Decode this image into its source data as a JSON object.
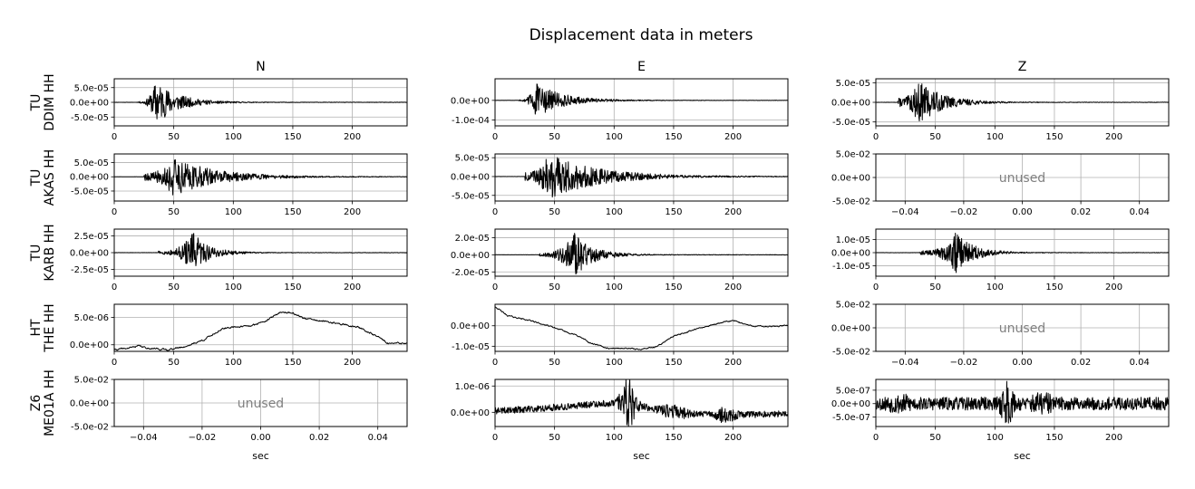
{
  "chart_data": {
    "type": "line",
    "title": "Displacement data in meters",
    "columns": [
      "N",
      "E",
      "Z"
    ],
    "xlabel": "sec",
    "xlim": [
      0,
      246
    ],
    "xticks": [
      "0",
      "50",
      "100",
      "150",
      "200"
    ],
    "xtick_values": [
      0,
      50,
      100,
      150,
      200
    ],
    "unused_xticks": [
      "−0.04",
      "−0.02",
      "0.00",
      "0.02",
      "0.04"
    ],
    "unused_xtick_values": [
      -0.04,
      -0.02,
      0.0,
      0.02,
      0.04
    ],
    "unused_xlim": [
      -0.05,
      0.05
    ],
    "unused_yticks": [
      "5.0e-02",
      "0.0e+00",
      "-5.0e-02"
    ],
    "unused_ytick_values": [
      0.05,
      0.0,
      -0.05
    ],
    "unused_ylim": [
      -0.05,
      0.05
    ],
    "unused_text": "unused",
    "rows": [
      {
        "network": "TU",
        "station": "DDIM HH",
        "panels": [
          {
            "component": "N",
            "used": true,
            "ylim": [
              -8e-05,
              8e-05
            ],
            "yticks": [
              "5.0e-05",
              "0.0e+00",
              "-5.0e-05"
            ],
            "ytick_values": [
              5e-05,
              0,
              -5e-05
            ],
            "trace": {
              "kind": "quake",
              "onset": 20,
              "peak": 35,
              "amp": 7.5e-05,
              "decay": 18,
              "pre": 0.04,
              "seed": 11
            }
          },
          {
            "component": "E",
            "used": true,
            "ylim": [
              -0.00013,
              0.00011
            ],
            "yticks": [
              "0.0e+00",
              "-1.0e-04"
            ],
            "ytick_values": [
              0,
              -0.0001
            ],
            "trace": {
              "kind": "quake",
              "onset": 20,
              "peak": 34,
              "amp": 9e-05,
              "decay": 22,
              "pre": 0.04,
              "seed": 12
            }
          },
          {
            "component": "Z",
            "used": true,
            "ylim": [
              -6e-05,
              6e-05
            ],
            "yticks": [
              "5.0e-05",
              "0.0e+00",
              "-5.0e-05"
            ],
            "ytick_values": [
              5e-05,
              0,
              -5e-05
            ],
            "trace": {
              "kind": "quake",
              "onset": 18,
              "peak": 36,
              "amp": 5.5e-05,
              "decay": 20,
              "pre": 0.2,
              "seed": 13
            }
          }
        ]
      },
      {
        "network": "TU",
        "station": "AKAS HH",
        "panels": [
          {
            "component": "N",
            "used": true,
            "ylim": [
              -8.5e-05,
              8e-05
            ],
            "yticks": [
              "5.0e-05",
              "0.0e+00",
              "-5.0e-05"
            ],
            "ytick_values": [
              5e-05,
              0,
              -5e-05
            ],
            "trace": {
              "kind": "quake",
              "onset": 25,
              "peak": 48,
              "amp": 7e-05,
              "decay": 35,
              "pre": 0.2,
              "seed": 21
            }
          },
          {
            "component": "E",
            "used": true,
            "ylim": [
              -6.5e-05,
              6e-05
            ],
            "yticks": [
              "5.0e-05",
              "0.0e+00",
              "-5.0e-05"
            ],
            "ytick_values": [
              5e-05,
              0,
              -5e-05
            ],
            "trace": {
              "kind": "quake",
              "onset": 25,
              "peak": 45,
              "amp": 6e-05,
              "decay": 40,
              "pre": 0.2,
              "seed": 22
            }
          },
          {
            "component": "Z",
            "used": false
          }
        ]
      },
      {
        "network": "TU",
        "station": "KARB HH",
        "panels": [
          {
            "component": "N",
            "used": true,
            "ylim": [
              -3.5e-05,
              3.5e-05
            ],
            "yticks": [
              "2.5e-05",
              "0.0e+00",
              "-2.5e-05"
            ],
            "ytick_values": [
              2.5e-05,
              0,
              -2.5e-05
            ],
            "trace": {
              "kind": "quake",
              "onset": 37,
              "peak": 66,
              "amp": 3e-05,
              "decay": 14,
              "pre": 0.08,
              "seed": 31
            }
          },
          {
            "component": "E",
            "used": true,
            "ylim": [
              -2.5e-05,
              3e-05
            ],
            "yticks": [
              "2.0e-05",
              "0.0e+00",
              "-2.0e-05"
            ],
            "ytick_values": [
              2e-05,
              0,
              -2e-05
            ],
            "trace": {
              "kind": "quake",
              "onset": 37,
              "peak": 66,
              "amp": 2.7e-05,
              "decay": 15,
              "pre": 0.08,
              "seed": 32
            }
          },
          {
            "component": "Z",
            "used": true,
            "ylim": [
              -1.8e-05,
              1.8e-05
            ],
            "yticks": [
              "1.0e-05",
              "0.0e+00",
              "-1.0e-05"
            ],
            "ytick_values": [
              1e-05,
              0,
              -1e-05
            ],
            "trace": {
              "kind": "quake",
              "onset": 37,
              "peak": 67,
              "amp": 1.6e-05,
              "decay": 15,
              "pre": 0.1,
              "seed": 33
            }
          }
        ]
      },
      {
        "network": "HT",
        "station": "THE HH",
        "panels": [
          {
            "component": "N",
            "used": true,
            "ylim": [
              -1.2e-06,
              7.4e-06
            ],
            "yticks": [
              "5.0e-06",
              "0.0e+00"
            ],
            "ytick_values": [
              5e-06,
              0
            ],
            "trace": {
              "kind": "drift",
              "noise": 1.2e-07,
              "seed": 41,
              "path": [
                [
                  0,
                  -9e-07
                ],
                [
                  10,
                  -7e-07
                ],
                [
                  20,
                  -2e-07
                ],
                [
                  28,
                  -6e-07
                ],
                [
                  45,
                  -9e-07
                ],
                [
                  60,
                  -3e-07
                ],
                [
                  75,
                  9e-07
                ],
                [
                  90,
                  2.8e-06
                ],
                [
                  100,
                  3.3e-06
                ],
                [
                  115,
                  3.4e-06
                ],
                [
                  130,
                  4.7e-06
                ],
                [
                  140,
                  6e-06
                ],
                [
                  150,
                  5.8e-06
                ],
                [
                  160,
                  4.8e-06
                ],
                [
                  175,
                  4.3e-06
                ],
                [
                  190,
                  3.8e-06
                ],
                [
                  205,
                  3.2e-06
                ],
                [
                  220,
                  1.6e-06
                ],
                [
                  230,
                  3e-07
                ],
                [
                  246,
                  2e-07
                ]
              ]
            }
          },
          {
            "component": "E",
            "used": true,
            "ylim": [
              -1.25e-05,
              1.05e-05
            ],
            "yticks": [
              "0.0e+00",
              "-1.0e-05"
            ],
            "ytick_values": [
              0,
              -1e-05
            ],
            "trace": {
              "kind": "drift",
              "noise": 2.5e-07,
              "seed": 42,
              "path": [
                [
                  0,
                  9.5e-06
                ],
                [
                  10,
                  5e-06
                ],
                [
                  30,
                  2.5e-06
                ],
                [
                  50,
                  -1e-06
                ],
                [
                  70,
                  -5e-06
                ],
                [
                  80,
                  -8.5e-06
                ],
                [
                  95,
                  -1.1e-05
                ],
                [
                  110,
                  -1.1e-05
                ],
                [
                  120,
                  -1.15e-05
                ],
                [
                  135,
                  -1.05e-05
                ],
                [
                  150,
                  -5e-06
                ],
                [
                  170,
                  -1.5e-06
                ],
                [
                  190,
                  1.5e-06
                ],
                [
                  200,
                  2.5e-06
                ],
                [
                  215,
                  0.0
                ],
                [
                  230,
                  -5e-07
                ],
                [
                  246,
                  2e-07
                ]
              ]
            }
          },
          {
            "component": "Z",
            "used": false
          }
        ]
      },
      {
        "network": "Z6",
        "station": "ME01A HH",
        "panels": [
          {
            "component": "N",
            "used": false
          },
          {
            "component": "E",
            "used": true,
            "ylim": [
              -5.4e-07,
              1.25e-06
            ],
            "yticks": [
              "1.0e-06",
              "0.0e+00"
            ],
            "ytick_values": [
              1e-06,
              0
            ],
            "trace": {
              "kind": "noisy",
              "amp": 1.4e-07,
              "seed": 52,
              "path": [
                [
                  0,
                  5e-08
                ],
                [
                  40,
                  1.5e-07
                ],
                [
                  80,
                  3e-07
                ],
                [
                  100,
                  3.5e-07
                ],
                [
                  110,
                  4.5e-07
                ],
                [
                  130,
                  1.5e-07
                ],
                [
                  160,
                  -5e-08
                ],
                [
                  200,
                  -1e-07
                ],
                [
                  246,
                  -5e-08
                ]
              ],
              "bursts": [
                [
                  112,
                  1.1e-06,
                  6
                ],
                [
                  150,
                  3e-07,
                  10
                ],
                [
                  193,
                  3e-07,
                  8
                ]
              ]
            }
          },
          {
            "component": "Z",
            "used": true,
            "ylim": [
              -8.5e-07,
              9e-07
            ],
            "yticks": [
              "5.0e-07",
              "0.0e+00",
              "-5.0e-07"
            ],
            "ytick_values": [
              5e-07,
              0,
              -5e-07
            ],
            "trace": {
              "kind": "noisy",
              "amp": 2.7e-07,
              "seed": 53,
              "path": [
                [
                  0,
                  0
                ],
                [
                  246,
                  0
                ]
              ],
              "bursts": [
                [
                  110,
                  9e-07,
                  5
                ],
                [
                  140,
                  4e-07,
                  8
                ],
                [
                  20,
                  3e-07,
                  10
                ]
              ]
            }
          }
        ]
      }
    ]
  }
}
